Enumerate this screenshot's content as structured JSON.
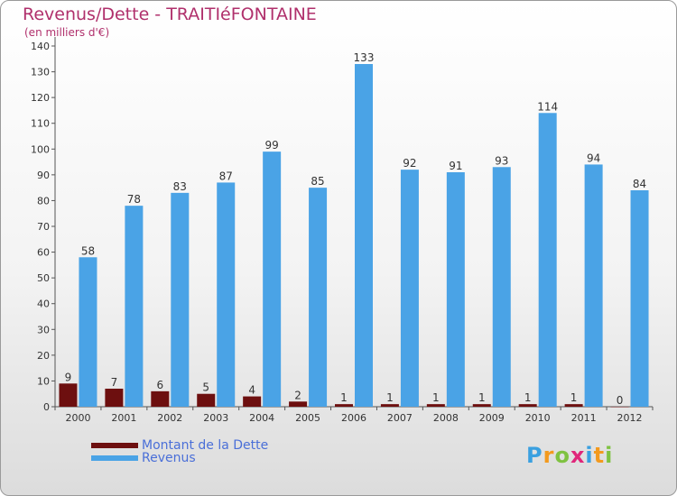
{
  "title": "Revenus/Dette - TRAITIéFONTAINE",
  "subtitle": "(en milliers d'€)",
  "logo": {
    "letters": [
      "P",
      "r",
      "o",
      "x",
      "i",
      "t",
      "i"
    ],
    "colors": [
      "#3aa0e0",
      "#f39a1e",
      "#7fc241",
      "#e0267a",
      "#3aa0e0",
      "#f39a1e",
      "#7fc241"
    ]
  },
  "colors": {
    "dette": "#6d0f0f",
    "revenus": "#4aa3e6",
    "title": "#b0306c",
    "legend_text": "#4a6fd8"
  },
  "chart_data": {
    "type": "bar",
    "categories": [
      "2000",
      "2001",
      "2002",
      "2003",
      "2004",
      "2005",
      "2006",
      "2007",
      "2008",
      "2009",
      "2010",
      "2011",
      "2012"
    ],
    "series": [
      {
        "name": "Montant de la Dette",
        "values": [
          9,
          7,
          6,
          5,
          4,
          2,
          1,
          1,
          1,
          1,
          1,
          1,
          0
        ]
      },
      {
        "name": "Revenus",
        "values": [
          58,
          78,
          83,
          87,
          99,
          85,
          133,
          92,
          91,
          93,
          114,
          94,
          84
        ]
      }
    ],
    "ylim": [
      0,
      140
    ],
    "yticks": [
      0,
      10,
      20,
      30,
      40,
      50,
      60,
      70,
      80,
      90,
      100,
      110,
      120,
      130,
      140
    ],
    "grid": false,
    "legend_position": "bottom-left"
  }
}
